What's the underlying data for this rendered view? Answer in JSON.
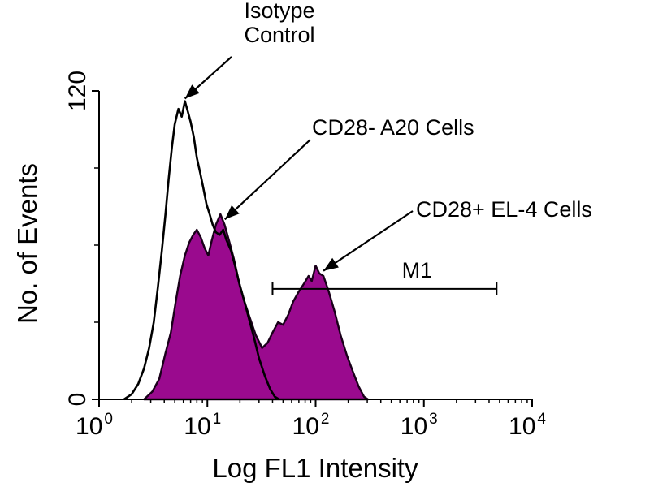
{
  "chart_data": {
    "type": "area",
    "xlabel": "Log FL1 Intensity",
    "ylabel": "No. of Events",
    "x_scale": "log",
    "xlim": [
      1,
      10000
    ],
    "ylim": [
      0,
      120
    ],
    "x_ticks": [
      {
        "base": "10",
        "exp": "0",
        "value": 1
      },
      {
        "base": "10",
        "exp": "1",
        "value": 10
      },
      {
        "base": "10",
        "exp": "2",
        "value": 100
      },
      {
        "base": "10",
        "exp": "3",
        "value": 1000
      },
      {
        "base": "10",
        "exp": "4",
        "value": 10000
      }
    ],
    "y_ticks": [
      {
        "label": "0",
        "value": 0
      },
      {
        "label": "120",
        "value": 120
      }
    ],
    "y_minor_ticks": [
      30,
      60,
      90
    ],
    "grid": false,
    "legend": "none",
    "series": [
      {
        "style": "filled",
        "color": "#9a0a8e",
        "points": [
          [
            2.6,
            0
          ],
          [
            3.1,
            3
          ],
          [
            3.6,
            8
          ],
          [
            4.1,
            18
          ],
          [
            4.6,
            26
          ],
          [
            5.1,
            38
          ],
          [
            5.6,
            48
          ],
          [
            6.2,
            56
          ],
          [
            6.8,
            61
          ],
          [
            7.4,
            64
          ],
          [
            8.0,
            66
          ],
          [
            8.7,
            63
          ],
          [
            9.4,
            59
          ],
          [
            10.2,
            56
          ],
          [
            11,
            62
          ],
          [
            12,
            68
          ],
          [
            13.2,
            72
          ],
          [
            14.4,
            68
          ],
          [
            15.8,
            62
          ],
          [
            17.5,
            55
          ],
          [
            19.5,
            46
          ],
          [
            22,
            38
          ],
          [
            25,
            31
          ],
          [
            28,
            25
          ],
          [
            32,
            20
          ],
          [
            36,
            22
          ],
          [
            40,
            26
          ],
          [
            45,
            30
          ],
          [
            50,
            29
          ],
          [
            56,
            33
          ],
          [
            62,
            38
          ],
          [
            70,
            42
          ],
          [
            78,
            45
          ],
          [
            86,
            48
          ],
          [
            92,
            46
          ],
          [
            100,
            52
          ],
          [
            108,
            49
          ],
          [
            118,
            48
          ],
          [
            132,
            42
          ],
          [
            150,
            34
          ],
          [
            170,
            25
          ],
          [
            195,
            17
          ],
          [
            220,
            11
          ],
          [
            250,
            5
          ],
          [
            280,
            1
          ],
          [
            305,
            0
          ]
        ]
      },
      {
        "style": "outline",
        "color": "#000000",
        "points": [
          [
            1.7,
            0
          ],
          [
            2.0,
            2
          ],
          [
            2.3,
            6
          ],
          [
            2.6,
            12
          ],
          [
            2.9,
            20
          ],
          [
            3.2,
            30
          ],
          [
            3.5,
            44
          ],
          [
            3.8,
            58
          ],
          [
            4.1,
            72
          ],
          [
            4.4,
            86
          ],
          [
            4.7,
            98
          ],
          [
            5.0,
            107
          ],
          [
            5.4,
            113
          ],
          [
            5.8,
            110
          ],
          [
            6.2,
            116
          ],
          [
            6.6,
            112
          ],
          [
            7.0,
            108
          ],
          [
            7.5,
            102
          ],
          [
            8.0,
            94
          ],
          [
            8.6,
            88
          ],
          [
            9.2,
            82
          ],
          [
            9.8,
            76
          ],
          [
            10.5,
            72
          ],
          [
            11.2,
            68
          ],
          [
            12,
            65
          ],
          [
            13,
            64
          ],
          [
            14,
            66
          ],
          [
            15,
            62
          ],
          [
            16.5,
            58
          ],
          [
            18,
            52
          ],
          [
            20,
            44
          ],
          [
            22,
            38
          ],
          [
            24,
            32
          ],
          [
            27,
            24
          ],
          [
            30,
            16
          ],
          [
            34,
            9
          ],
          [
            38,
            4
          ],
          [
            42,
            1
          ],
          [
            46,
            0
          ]
        ]
      }
    ],
    "marker": {
      "label": "M1",
      "x_start": 40,
      "x_end": 4700,
      "y": 43
    },
    "annotations": [
      {
        "text": [
          "Isotype",
          "Control"
        ],
        "x": 6.2,
        "y": 117
      },
      {
        "text": [
          "CD28- A20 Cells"
        ],
        "x": 14.5,
        "y": 70
      },
      {
        "text": [
          "CD28+ EL-4 Cells"
        ],
        "x": 118,
        "y": 50
      }
    ]
  }
}
